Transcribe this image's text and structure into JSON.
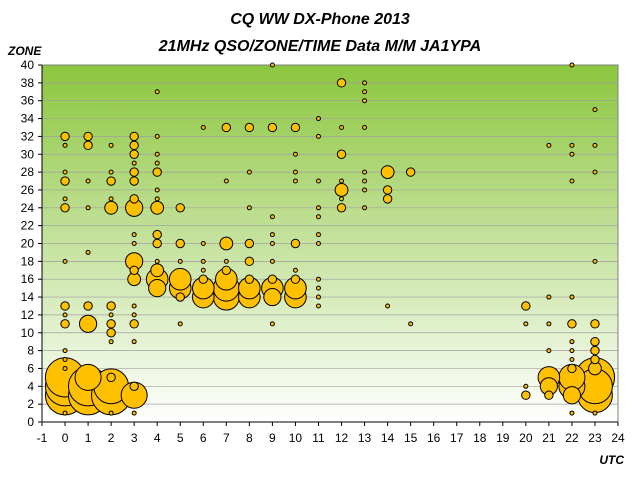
{
  "chart_data": {
    "type": "bubble",
    "title": "CQ WW DX-Phone 2013",
    "subtitle": "21MHz QSO/ZONE/TIME Data M/M JA1YPA",
    "xlabel": "UTC",
    "ylabel": "ZONE",
    "xlim": [
      -1,
      24
    ],
    "ylim": [
      0,
      40
    ],
    "x_ticks": [
      -1,
      0,
      1,
      2,
      3,
      4,
      5,
      6,
      7,
      8,
      9,
      10,
      11,
      12,
      13,
      14,
      15,
      16,
      17,
      18,
      19,
      20,
      21,
      22,
      23,
      24
    ],
    "y_ticks": [
      0,
      2,
      4,
      6,
      8,
      10,
      12,
      14,
      16,
      18,
      20,
      22,
      24,
      26,
      28,
      30,
      32,
      34,
      36,
      38,
      40
    ],
    "grid": true,
    "legend": "none",
    "colors": {
      "bubble_fill": "#ffc000",
      "bubble_stroke": "#000000",
      "plot_top": "#8cc63e",
      "plot_bottom": "#ffffff"
    },
    "points": [
      {
        "x": 0,
        "y": 1,
        "s": 1
      },
      {
        "x": 0,
        "y": 3,
        "s": 9
      },
      {
        "x": 0,
        "y": 4,
        "s": 9
      },
      {
        "x": 0,
        "y": 5,
        "s": 9
      },
      {
        "x": 0,
        "y": 6,
        "s": 1
      },
      {
        "x": 0,
        "y": 7,
        "s": 1
      },
      {
        "x": 0,
        "y": 8,
        "s": 1
      },
      {
        "x": 0,
        "y": 11,
        "s": 2
      },
      {
        "x": 0,
        "y": 12,
        "s": 1
      },
      {
        "x": 0,
        "y": 13,
        "s": 2
      },
      {
        "x": 0,
        "y": 18,
        "s": 1
      },
      {
        "x": 0,
        "y": 24,
        "s": 2
      },
      {
        "x": 0,
        "y": 25,
        "s": 1
      },
      {
        "x": 0,
        "y": 27,
        "s": 2
      },
      {
        "x": 0,
        "y": 28,
        "s": 1
      },
      {
        "x": 0,
        "y": 31,
        "s": 1
      },
      {
        "x": 0,
        "y": 32,
        "s": 2
      },
      {
        "x": 1,
        "y": 3,
        "s": 9
      },
      {
        "x": 1,
        "y": 4,
        "s": 9
      },
      {
        "x": 1,
        "y": 5,
        "s": 6
      },
      {
        "x": 1,
        "y": 11,
        "s": 4
      },
      {
        "x": 1,
        "y": 13,
        "s": 2
      },
      {
        "x": 1,
        "y": 19,
        "s": 1
      },
      {
        "x": 1,
        "y": 24,
        "s": 1
      },
      {
        "x": 1,
        "y": 27,
        "s": 1
      },
      {
        "x": 1,
        "y": 31,
        "s": 2
      },
      {
        "x": 1,
        "y": 32,
        "s": 2
      },
      {
        "x": 2,
        "y": 1,
        "s": 1
      },
      {
        "x": 2,
        "y": 3,
        "s": 9
      },
      {
        "x": 2,
        "y": 4,
        "s": 8
      },
      {
        "x": 2,
        "y": 5,
        "s": 2
      },
      {
        "x": 2,
        "y": 9,
        "s": 1
      },
      {
        "x": 2,
        "y": 10,
        "s": 2
      },
      {
        "x": 2,
        "y": 11,
        "s": 2
      },
      {
        "x": 2,
        "y": 12,
        "s": 1
      },
      {
        "x": 2,
        "y": 13,
        "s": 2
      },
      {
        "x": 2,
        "y": 24,
        "s": 3
      },
      {
        "x": 2,
        "y": 25,
        "s": 1
      },
      {
        "x": 2,
        "y": 27,
        "s": 2
      },
      {
        "x": 2,
        "y": 28,
        "s": 1
      },
      {
        "x": 2,
        "y": 31,
        "s": 1
      },
      {
        "x": 3,
        "y": 1,
        "s": 1
      },
      {
        "x": 3,
        "y": 3,
        "s": 6
      },
      {
        "x": 3,
        "y": 4,
        "s": 2
      },
      {
        "x": 3,
        "y": 9,
        "s": 1
      },
      {
        "x": 3,
        "y": 11,
        "s": 2
      },
      {
        "x": 3,
        "y": 12,
        "s": 1
      },
      {
        "x": 3,
        "y": 13,
        "s": 1
      },
      {
        "x": 3,
        "y": 16,
        "s": 3
      },
      {
        "x": 3,
        "y": 17,
        "s": 2
      },
      {
        "x": 3,
        "y": 18,
        "s": 4
      },
      {
        "x": 3,
        "y": 20,
        "s": 1
      },
      {
        "x": 3,
        "y": 21,
        "s": 1
      },
      {
        "x": 3,
        "y": 24,
        "s": 4
      },
      {
        "x": 3,
        "y": 25,
        "s": 2
      },
      {
        "x": 3,
        "y": 27,
        "s": 2
      },
      {
        "x": 3,
        "y": 28,
        "s": 2
      },
      {
        "x": 3,
        "y": 29,
        "s": 1
      },
      {
        "x": 3,
        "y": 30,
        "s": 2
      },
      {
        "x": 3,
        "y": 31,
        "s": 2
      },
      {
        "x": 3,
        "y": 32,
        "s": 2
      },
      {
        "x": 4,
        "y": 15,
        "s": 4
      },
      {
        "x": 4,
        "y": 16,
        "s": 5
      },
      {
        "x": 4,
        "y": 17,
        "s": 3
      },
      {
        "x": 4,
        "y": 18,
        "s": 1
      },
      {
        "x": 4,
        "y": 20,
        "s": 2
      },
      {
        "x": 4,
        "y": 21,
        "s": 2
      },
      {
        "x": 4,
        "y": 24,
        "s": 3
      },
      {
        "x": 4,
        "y": 25,
        "s": 1
      },
      {
        "x": 4,
        "y": 26,
        "s": 1
      },
      {
        "x": 4,
        "y": 28,
        "s": 2
      },
      {
        "x": 4,
        "y": 29,
        "s": 1
      },
      {
        "x": 4,
        "y": 30,
        "s": 1
      },
      {
        "x": 4,
        "y": 32,
        "s": 1
      },
      {
        "x": 4,
        "y": 37,
        "s": 1
      },
      {
        "x": 5,
        "y": 11,
        "s": 1
      },
      {
        "x": 5,
        "y": 14,
        "s": 2
      },
      {
        "x": 5,
        "y": 15,
        "s": 5
      },
      {
        "x": 5,
        "y": 16,
        "s": 5
      },
      {
        "x": 5,
        "y": 18,
        "s": 1
      },
      {
        "x": 5,
        "y": 20,
        "s": 2
      },
      {
        "x": 5,
        "y": 24,
        "s": 2
      },
      {
        "x": 6,
        "y": 14,
        "s": 5
      },
      {
        "x": 6,
        "y": 15,
        "s": 5
      },
      {
        "x": 6,
        "y": 16,
        "s": 2
      },
      {
        "x": 6,
        "y": 17,
        "s": 1
      },
      {
        "x": 6,
        "y": 18,
        "s": 1
      },
      {
        "x": 6,
        "y": 20,
        "s": 1
      },
      {
        "x": 6,
        "y": 33,
        "s": 1
      },
      {
        "x": 7,
        "y": 14,
        "s": 6
      },
      {
        "x": 7,
        "y": 15,
        "s": 6
      },
      {
        "x": 7,
        "y": 16,
        "s": 5
      },
      {
        "x": 7,
        "y": 17,
        "s": 2
      },
      {
        "x": 7,
        "y": 18,
        "s": 1
      },
      {
        "x": 7,
        "y": 20,
        "s": 3
      },
      {
        "x": 7,
        "y": 27,
        "s": 1
      },
      {
        "x": 7,
        "y": 33,
        "s": 2
      },
      {
        "x": 8,
        "y": 14,
        "s": 5
      },
      {
        "x": 8,
        "y": 15,
        "s": 5
      },
      {
        "x": 8,
        "y": 16,
        "s": 2
      },
      {
        "x": 8,
        "y": 18,
        "s": 2
      },
      {
        "x": 8,
        "y": 20,
        "s": 2
      },
      {
        "x": 8,
        "y": 24,
        "s": 1
      },
      {
        "x": 8,
        "y": 28,
        "s": 1
      },
      {
        "x": 8,
        "y": 33,
        "s": 2
      },
      {
        "x": 9,
        "y": 11,
        "s": 1
      },
      {
        "x": 9,
        "y": 14,
        "s": 4
      },
      {
        "x": 9,
        "y": 15,
        "s": 5
      },
      {
        "x": 9,
        "y": 16,
        "s": 2
      },
      {
        "x": 9,
        "y": 18,
        "s": 1
      },
      {
        "x": 9,
        "y": 20,
        "s": 1
      },
      {
        "x": 9,
        "y": 21,
        "s": 1
      },
      {
        "x": 9,
        "y": 23,
        "s": 1
      },
      {
        "x": 9,
        "y": 33,
        "s": 2
      },
      {
        "x": 9,
        "y": 40,
        "s": 1
      },
      {
        "x": 10,
        "y": 14,
        "s": 5
      },
      {
        "x": 10,
        "y": 15,
        "s": 5
      },
      {
        "x": 10,
        "y": 16,
        "s": 2
      },
      {
        "x": 10,
        "y": 17,
        "s": 1
      },
      {
        "x": 10,
        "y": 20,
        "s": 2
      },
      {
        "x": 10,
        "y": 27,
        "s": 1
      },
      {
        "x": 10,
        "y": 28,
        "s": 1
      },
      {
        "x": 10,
        "y": 30,
        "s": 1
      },
      {
        "x": 10,
        "y": 33,
        "s": 2
      },
      {
        "x": 11,
        "y": 13,
        "s": 1
      },
      {
        "x": 11,
        "y": 14,
        "s": 1
      },
      {
        "x": 11,
        "y": 15,
        "s": 1
      },
      {
        "x": 11,
        "y": 16,
        "s": 1
      },
      {
        "x": 11,
        "y": 20,
        "s": 1
      },
      {
        "x": 11,
        "y": 21,
        "s": 1
      },
      {
        "x": 11,
        "y": 23,
        "s": 1
      },
      {
        "x": 11,
        "y": 24,
        "s": 1
      },
      {
        "x": 11,
        "y": 27,
        "s": 1
      },
      {
        "x": 11,
        "y": 32,
        "s": 1
      },
      {
        "x": 11,
        "y": 34,
        "s": 1
      },
      {
        "x": 12,
        "y": 24,
        "s": 2
      },
      {
        "x": 12,
        "y": 25,
        "s": 1
      },
      {
        "x": 12,
        "y": 26,
        "s": 3
      },
      {
        "x": 12,
        "y": 27,
        "s": 1
      },
      {
        "x": 12,
        "y": 30,
        "s": 2
      },
      {
        "x": 12,
        "y": 33,
        "s": 1
      },
      {
        "x": 12,
        "y": 38,
        "s": 2
      },
      {
        "x": 13,
        "y": 24,
        "s": 1
      },
      {
        "x": 13,
        "y": 26,
        "s": 1
      },
      {
        "x": 13,
        "y": 27,
        "s": 1
      },
      {
        "x": 13,
        "y": 28,
        "s": 1
      },
      {
        "x": 13,
        "y": 33,
        "s": 1
      },
      {
        "x": 13,
        "y": 36,
        "s": 1
      },
      {
        "x": 13,
        "y": 37,
        "s": 1
      },
      {
        "x": 13,
        "y": 38,
        "s": 1
      },
      {
        "x": 14,
        "y": 13,
        "s": 1
      },
      {
        "x": 14,
        "y": 25,
        "s": 2
      },
      {
        "x": 14,
        "y": 26,
        "s": 2
      },
      {
        "x": 14,
        "y": 28,
        "s": 3
      },
      {
        "x": 15,
        "y": 11,
        "s": 1
      },
      {
        "x": 15,
        "y": 28,
        "s": 2
      },
      {
        "x": 20,
        "y": 3,
        "s": 2
      },
      {
        "x": 20,
        "y": 4,
        "s": 1
      },
      {
        "x": 20,
        "y": 11,
        "s": 1
      },
      {
        "x": 20,
        "y": 13,
        "s": 2
      },
      {
        "x": 21,
        "y": 3,
        "s": 2
      },
      {
        "x": 21,
        "y": 4,
        "s": 4
      },
      {
        "x": 21,
        "y": 5,
        "s": 5
      },
      {
        "x": 21,
        "y": 8,
        "s": 1
      },
      {
        "x": 21,
        "y": 11,
        "s": 1
      },
      {
        "x": 21,
        "y": 14,
        "s": 1
      },
      {
        "x": 21,
        "y": 31,
        "s": 1
      },
      {
        "x": 22,
        "y": 1,
        "s": 1
      },
      {
        "x": 22,
        "y": 3,
        "s": 4
      },
      {
        "x": 22,
        "y": 4,
        "s": 6
      },
      {
        "x": 22,
        "y": 5,
        "s": 6
      },
      {
        "x": 22,
        "y": 6,
        "s": 2
      },
      {
        "x": 22,
        "y": 7,
        "s": 1
      },
      {
        "x": 22,
        "y": 8,
        "s": 1
      },
      {
        "x": 22,
        "y": 9,
        "s": 1
      },
      {
        "x": 22,
        "y": 11,
        "s": 2
      },
      {
        "x": 22,
        "y": 14,
        "s": 1
      },
      {
        "x": 22,
        "y": 27,
        "s": 1
      },
      {
        "x": 22,
        "y": 30,
        "s": 1
      },
      {
        "x": 22,
        "y": 31,
        "s": 1
      },
      {
        "x": 22,
        "y": 40,
        "s": 1
      },
      {
        "x": 23,
        "y": 1,
        "s": 1
      },
      {
        "x": 23,
        "y": 3,
        "s": 8
      },
      {
        "x": 23,
        "y": 4,
        "s": 8
      },
      {
        "x": 23,
        "y": 5,
        "s": 9
      },
      {
        "x": 23,
        "y": 6,
        "s": 3
      },
      {
        "x": 23,
        "y": 7,
        "s": 2
      },
      {
        "x": 23,
        "y": 8,
        "s": 2
      },
      {
        "x": 23,
        "y": 9,
        "s": 2
      },
      {
        "x": 23,
        "y": 11,
        "s": 2
      },
      {
        "x": 23,
        "y": 18,
        "s": 1
      },
      {
        "x": 23,
        "y": 28,
        "s": 1
      },
      {
        "x": 23,
        "y": 31,
        "s": 1
      },
      {
        "x": 23,
        "y": 35,
        "s": 1
      }
    ]
  }
}
